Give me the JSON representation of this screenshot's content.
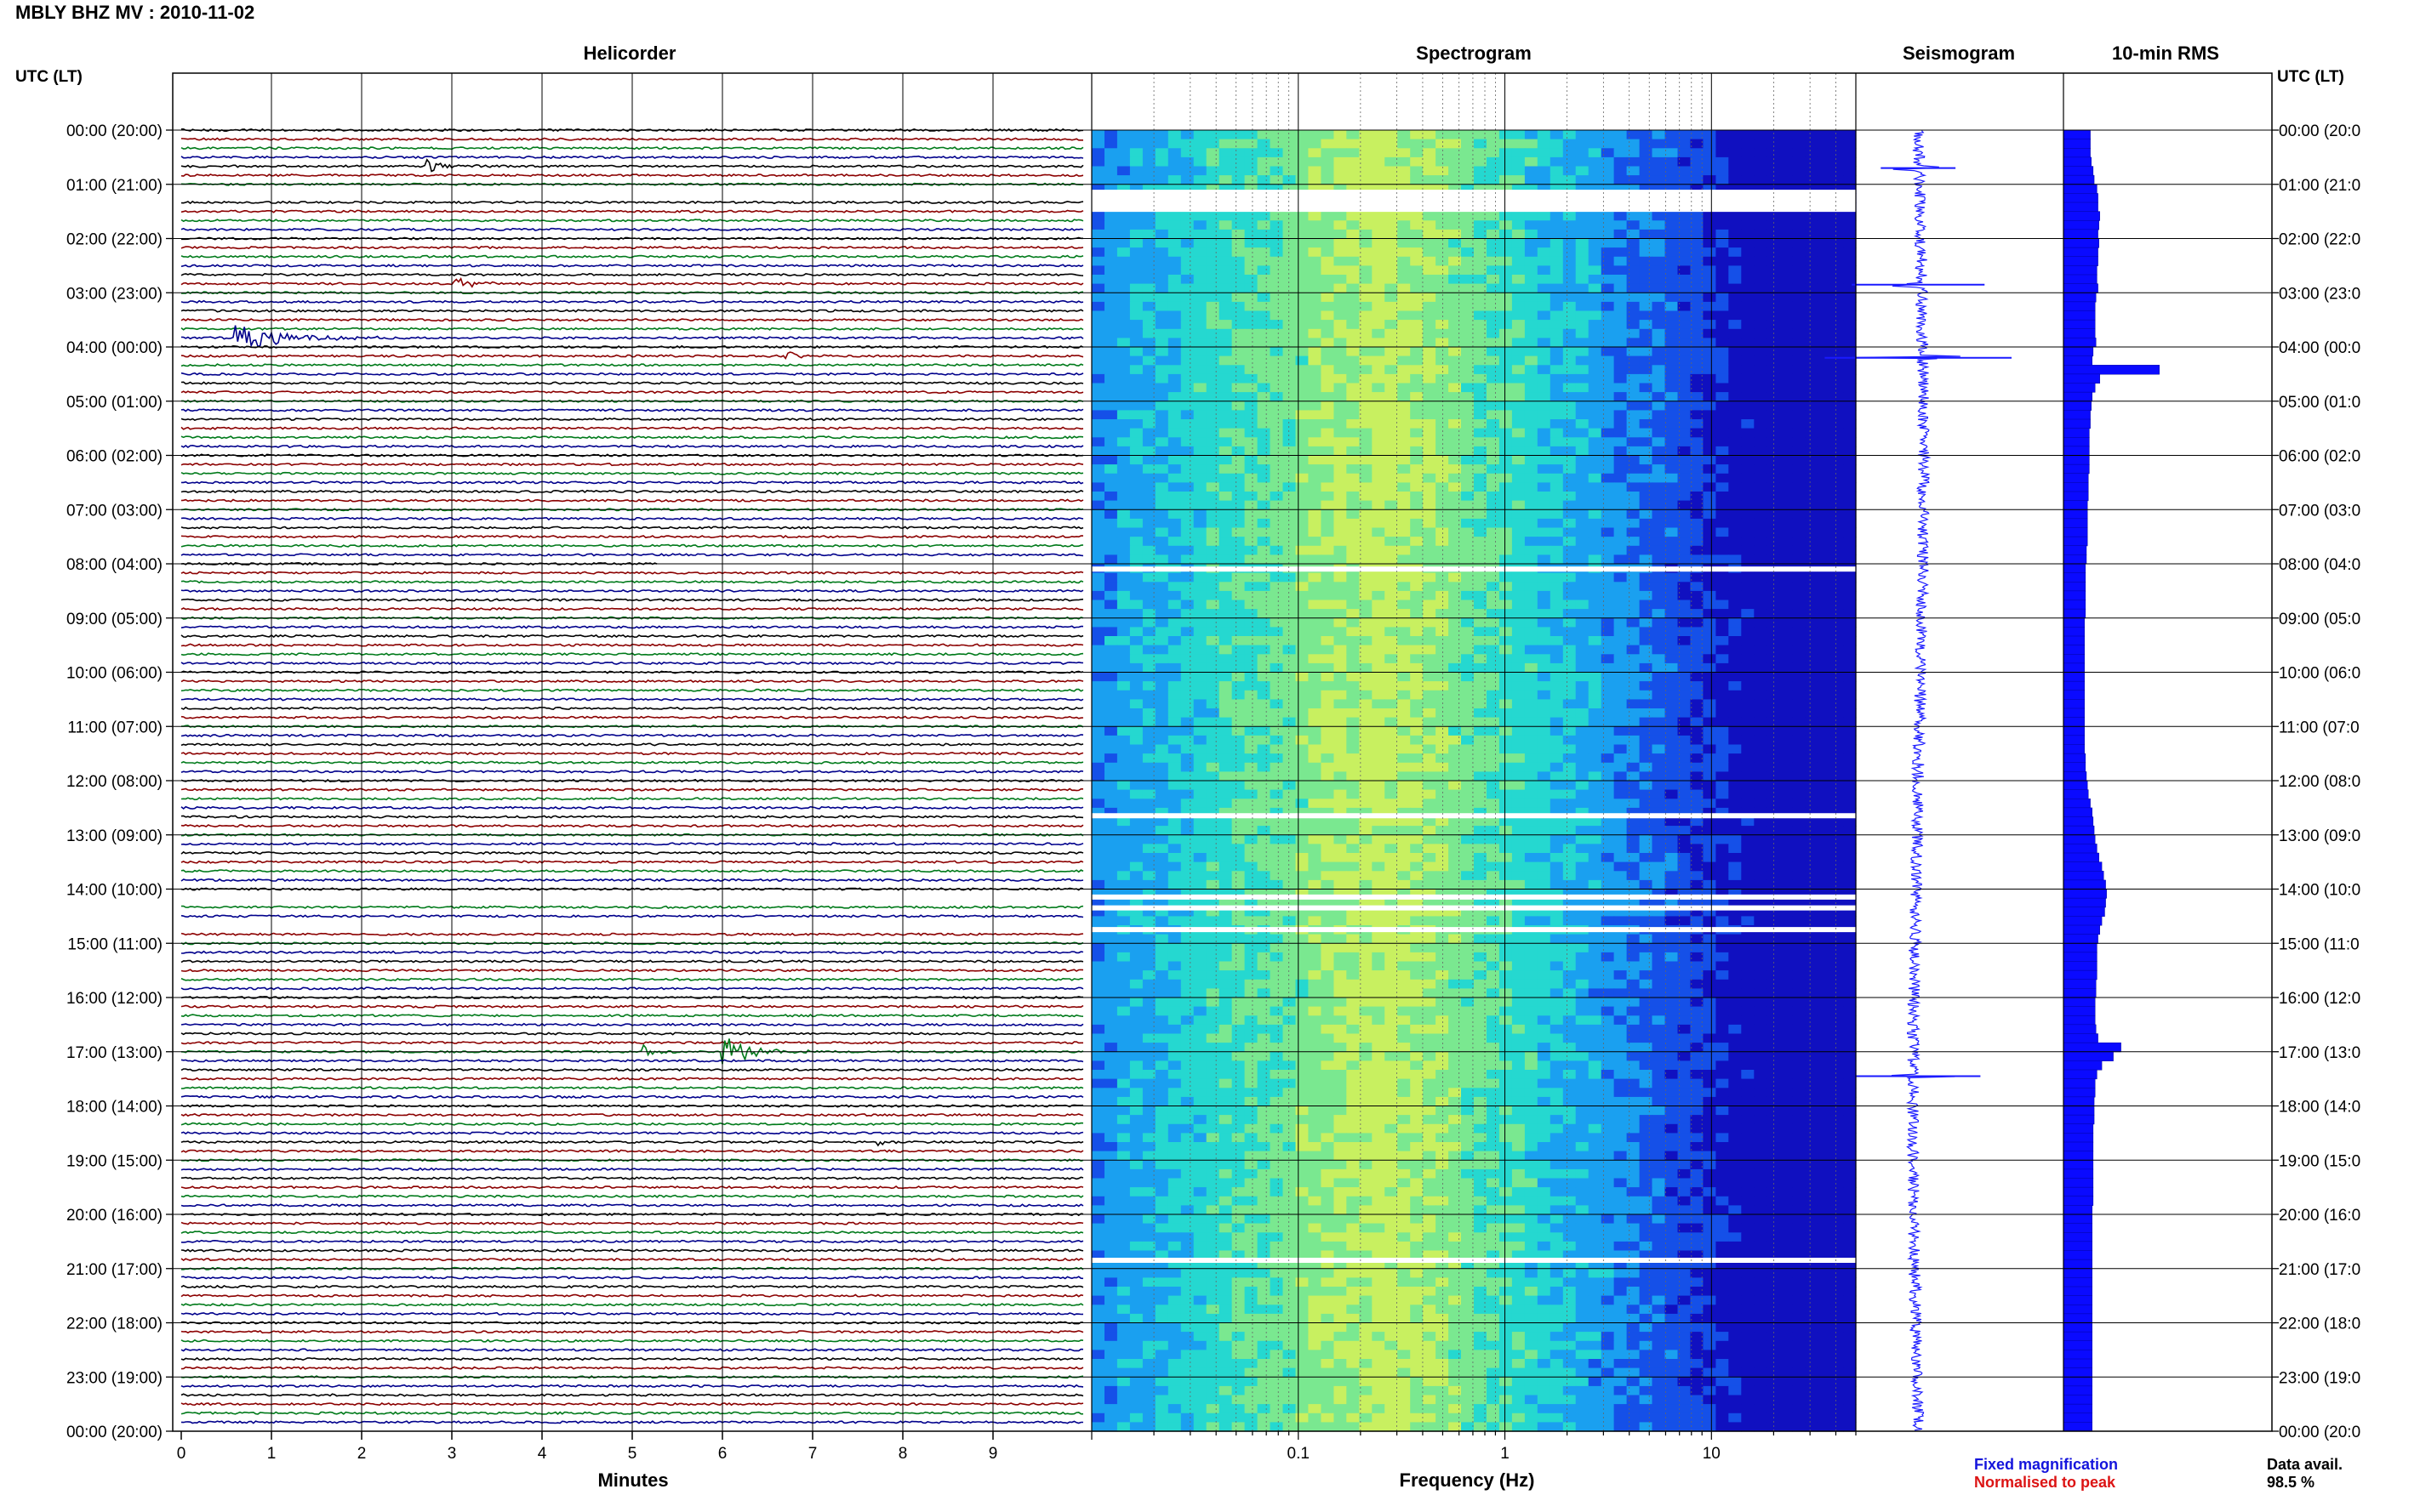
{
  "page_title": "MBLY BHZ MV : 2010-11-02",
  "colors": {
    "heli_traces": [
      "#000000",
      "#8b0000",
      "#007a1a",
      "#00008b"
    ],
    "seismogram": "#1a1aff",
    "rms": "#0a0aff",
    "legend_fixed": "#1414dc",
    "legend_norm": "#dc1414",
    "spectrogram_colormap": [
      "#1010c0",
      "#1550e8",
      "#1aa0f0",
      "#25d8d0",
      "#7ae890",
      "#c8f060"
    ]
  },
  "labels": {
    "corner_left": "UTC (LT)",
    "corner_right": "UTC (LT)",
    "data_avail_label": "Data avail.",
    "data_avail_value": "98.5 %",
    "legend_fixed": "Fixed magnification",
    "legend_norm": "Normalised to peak"
  },
  "chart_data": [
    {
      "type": "line",
      "name": "helicorder",
      "title": "Helicorder",
      "xlabel": "Minutes",
      "xlim": [
        0,
        10
      ],
      "x_ticks": [
        "0",
        "1",
        "2",
        "3",
        "4",
        "5",
        "6",
        "7",
        "8",
        "9"
      ],
      "rows_per_hour": 6,
      "hour_labels_left": [
        "00:00 (20:00)",
        "01:00 (21:00)",
        "02:00 (22:00)",
        "03:00 (23:00)",
        "04:00 (00:00)",
        "05:00 (01:00)",
        "06:00 (02:00)",
        "07:00 (03:00)",
        "08:00 (04:00)",
        "09:00 (05:00)",
        "10:00 (06:00)",
        "11:00 (07:00)",
        "12:00 (08:00)",
        "13:00 (09:00)",
        "14:00 (10:00)",
        "15:00 (11:00)",
        "16:00 (12:00)",
        "17:00 (13:00)",
        "18:00 (14:00)",
        "19:00 (15:00)",
        "20:00 (16:00)",
        "21:00 (17:00)",
        "22:00 (18:00)",
        "23:00 (19:00)",
        "00:00 (20:00)"
      ],
      "hour_labels_right": [
        "00:00 (20:0",
        "01:00 (21:0",
        "02:00 (22:0",
        "03:00 (23:0",
        "04:00 (00:0",
        "05:00 (01:0",
        "06:00 (02:0",
        "07:00 (03:0",
        "08:00 (04:0",
        "09:00 (05:0",
        "10:00 (06:0",
        "11:00 (07:0",
        "12:00 (08:0",
        "13:00 (09:0",
        "14:00 (10:0",
        "15:00 (11:0",
        "16:00 (12:0",
        "17:00 (13:0",
        "18:00 (14:0",
        "19:00 (15:0",
        "20:00 (16:0",
        "21:00 (17:0",
        "22:00 (18:0",
        "23:00 (19:0",
        "00:00 (20:0"
      ],
      "events": [
        {
          "row": 4,
          "start_min": 2.7,
          "end_min": 3.3,
          "amp": 0.5
        },
        {
          "row": 17,
          "start_min": 3.0,
          "end_min": 3.5,
          "amp": 0.7
        },
        {
          "row": 23,
          "start_min": 0.6,
          "end_min": 2.2,
          "amp": 0.9
        },
        {
          "row": 25,
          "start_min": 6.7,
          "end_min": 7.2,
          "amp": 0.3
        },
        {
          "row": 102,
          "start_min": 5.1,
          "end_min": 5.5,
          "amp": 0.6
        },
        {
          "row": 102,
          "start_min": 6.0,
          "end_min": 7.0,
          "amp": 0.9
        },
        {
          "row": 112,
          "start_min": 7.7,
          "end_min": 8.0,
          "amp": 0.3
        }
      ],
      "gaps": [
        {
          "row": 7,
          "start_min": 0,
          "end_min": 10
        },
        {
          "row": 48,
          "start_min": 5.3,
          "end_min": 10
        },
        {
          "row": 85,
          "start_min": 0,
          "end_min": 10
        },
        {
          "row": 88,
          "start_min": 0,
          "end_min": 10
        }
      ]
    },
    {
      "type": "heatmap",
      "name": "spectrogram",
      "title": "Spectrogram",
      "xlabel": "Frequency (Hz)",
      "xscale": "log",
      "xlim": [
        0.01,
        50
      ],
      "x_ticks": [
        {
          "value": 0.1,
          "label": "0.1"
        },
        {
          "value": 1,
          "label": "1"
        },
        {
          "value": 10,
          "label": "10"
        }
      ],
      "peak_frequency_hz": 0.25,
      "gap_hours": [
        1.1,
        8.05,
        12.6,
        14.1,
        14.3,
        14.7,
        20.8
      ]
    },
    {
      "type": "line",
      "name": "seismogram",
      "title": "Seismogram",
      "spikes": [
        {
          "hour": 0.7,
          "amp": 0.18
        },
        {
          "hour": 2.85,
          "amp": 0.32
        },
        {
          "hour": 4.2,
          "amp": 0.45
        },
        {
          "hour": 17.45,
          "amp": 0.3
        }
      ]
    },
    {
      "type": "bar",
      "name": "rms_10min",
      "title": "10-min RMS",
      "orientation": "horizontal",
      "values": [
        0.28,
        0.28,
        0.28,
        0.29,
        0.31,
        0.32,
        0.35,
        0.36,
        0.36,
        0.38,
        0.37,
        0.36,
        0.37,
        0.36,
        0.36,
        0.35,
        0.35,
        0.36,
        0.34,
        0.33,
        0.33,
        0.33,
        0.33,
        0.34,
        0.31,
        0.3,
        1.0,
        0.38,
        0.33,
        0.3,
        0.29,
        0.28,
        0.28,
        0.27,
        0.27,
        0.27,
        0.27,
        0.27,
        0.26,
        0.26,
        0.26,
        0.25,
        0.25,
        0.25,
        0.25,
        0.25,
        0.24,
        0.24,
        0.23,
        0.23,
        0.23,
        0.23,
        0.23,
        0.23,
        0.22,
        0.22,
        0.22,
        0.22,
        0.22,
        0.22,
        0.22,
        0.22,
        0.22,
        0.22,
        0.22,
        0.22,
        0.22,
        0.22,
        0.22,
        0.23,
        0.23,
        0.24,
        0.25,
        0.26,
        0.28,
        0.3,
        0.31,
        0.32,
        0.33,
        0.35,
        0.37,
        0.4,
        0.42,
        0.44,
        0.45,
        0.44,
        0.43,
        0.4,
        0.38,
        0.36,
        0.35,
        0.35,
        0.35,
        0.35,
        0.34,
        0.34,
        0.33,
        0.33,
        0.33,
        0.34,
        0.36,
        0.6,
        0.52,
        0.4,
        0.35,
        0.33,
        0.33,
        0.32,
        0.32,
        0.32,
        0.31,
        0.31,
        0.31,
        0.31,
        0.31,
        0.31,
        0.31,
        0.31,
        0.31,
        0.3,
        0.3,
        0.3,
        0.3,
        0.3,
        0.3,
        0.3,
        0.3,
        0.3,
        0.3,
        0.3,
        0.3,
        0.3,
        0.3,
        0.3,
        0.3,
        0.3,
        0.3,
        0.3,
        0.3,
        0.3,
        0.3,
        0.3,
        0.3,
        0.3
      ]
    }
  ]
}
